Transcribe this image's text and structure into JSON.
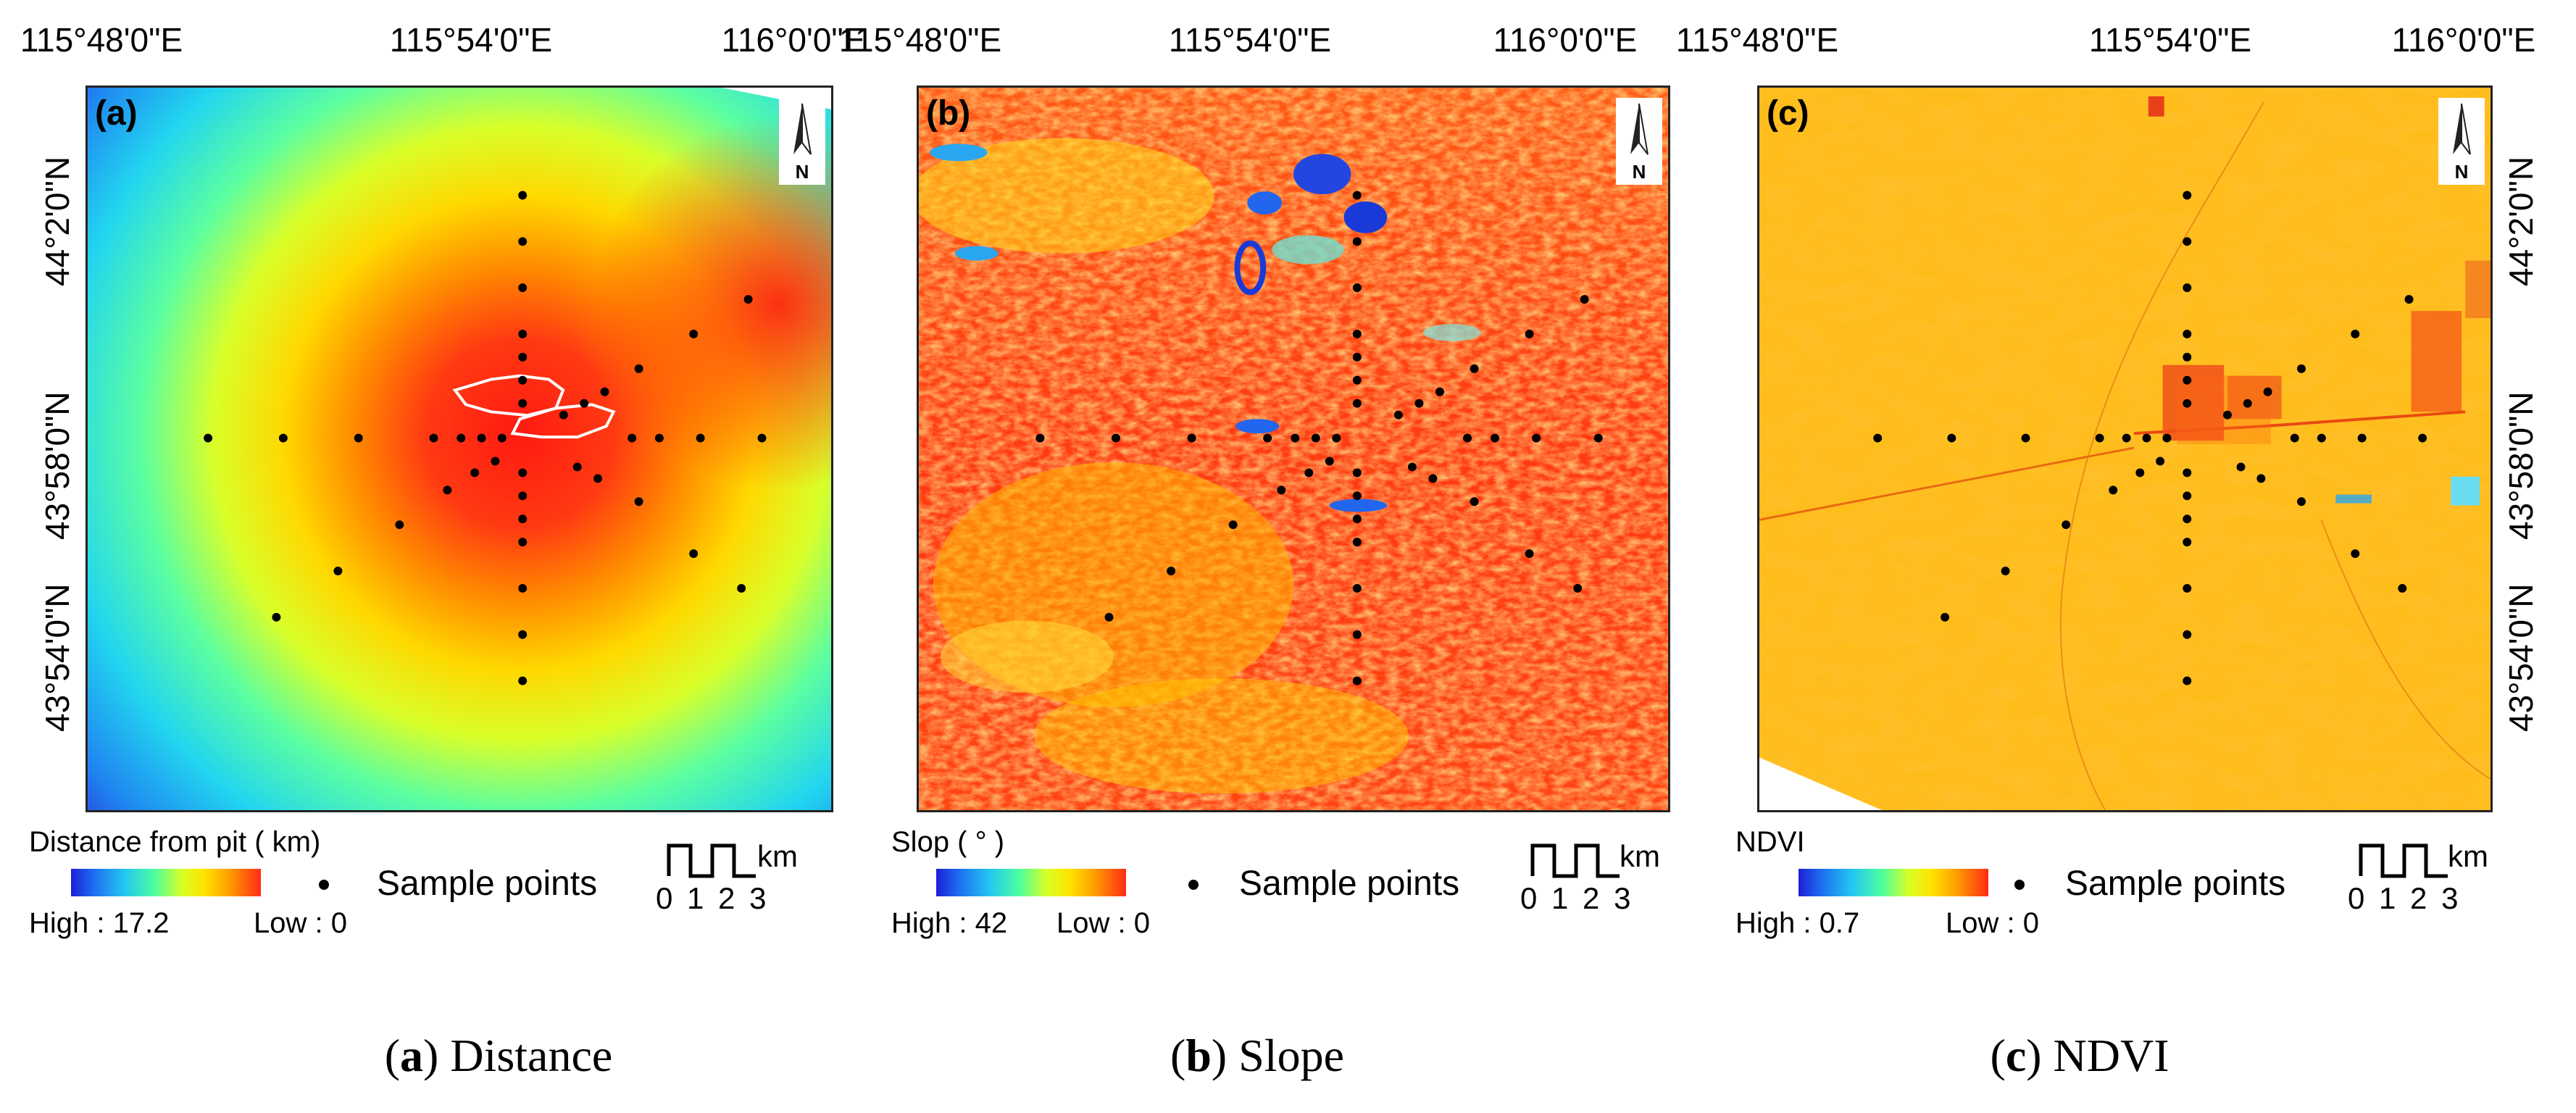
{
  "panels": [
    {
      "id": "a",
      "label": "(a)",
      "legend_title": "Distance from pit ( km)",
      "high_label": "High : 17.2",
      "low_label": "Low : 0",
      "sample_label": "Sample points",
      "caption_letter": "a",
      "caption_text": ") Distance",
      "lon_ticks": [
        "115°48'0\"E",
        "115°54'0\"E",
        "116°0'0\"E"
      ],
      "lat_ticks": [
        "44°2'0\"N",
        "43°58'0\"N",
        "43°54'0\"N"
      ],
      "lat_ticks_right": []
    },
    {
      "id": "b",
      "label": "(b)",
      "legend_title": "Slop ( ° )",
      "high_label": "High : 42",
      "low_label": "Low : 0",
      "sample_label": "Sample points",
      "caption_letter": "b",
      "caption_text": ") Slope",
      "lon_ticks": [
        "115°48'0\"E",
        "115°54'0\"E",
        "116°0'0\"E"
      ],
      "lat_ticks": [],
      "lat_ticks_right": []
    },
    {
      "id": "c",
      "label": "(c)",
      "legend_title": "NDVI",
      "high_label": "High : 0.7",
      "low_label": "Low : 0",
      "sample_label": "Sample points",
      "caption_letter": "c",
      "caption_text": ") NDVI",
      "lon_ticks": [
        "115°48'0\"E",
        "115°54'0\"E",
        "116°0'0\"E"
      ],
      "lat_ticks": [],
      "lat_ticks_right": [
        "44°2'0\"N",
        "43°58'0\"N",
        "43°54'0\"N"
      ]
    }
  ],
  "north_letter": "N",
  "scale_unit": "km",
  "scale_numbers": "0 1 2 3",
  "caption_open": "(",
  "colors": {
    "ramp_low": "#1e1ed6",
    "ramp_high": "#ff2b16",
    "sample_point": "#000000",
    "pit_outline": "#ffffff"
  },
  "icons": [
    "north-arrow-icon",
    "scale-bar-icon",
    "sample-point-icon"
  ]
}
